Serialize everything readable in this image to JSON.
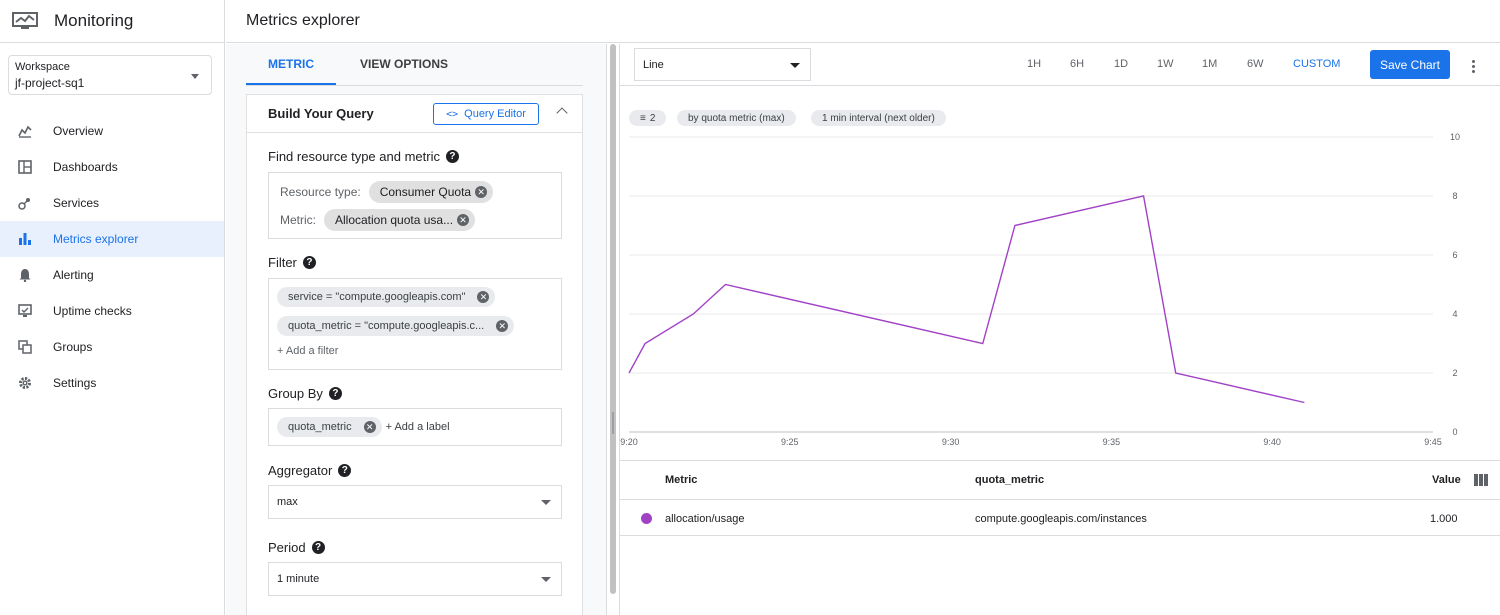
{
  "app": {
    "title": "Monitoring"
  },
  "sidebar": {
    "workspace_label": "Workspace",
    "workspace_value": "jf-project-sq1",
    "items": [
      {
        "label": "Overview",
        "icon": "overview-icon"
      },
      {
        "label": "Dashboards",
        "icon": "dashboards-icon"
      },
      {
        "label": "Services",
        "icon": "services-icon"
      },
      {
        "label": "Metrics explorer",
        "icon": "metrics-explorer-icon",
        "active": true
      },
      {
        "label": "Alerting",
        "icon": "alerting-icon"
      },
      {
        "label": "Uptime checks",
        "icon": "uptime-checks-icon"
      },
      {
        "label": "Groups",
        "icon": "groups-icon"
      },
      {
        "label": "Settings",
        "icon": "settings-icon"
      }
    ]
  },
  "header": {
    "title": "Metrics explorer"
  },
  "query": {
    "tabs": [
      "METRIC",
      "VIEW OPTIONS"
    ],
    "title": "Build Your Query",
    "query_editor": "Query Editor",
    "find_label": "Find resource type and metric",
    "resource_type_label": "Resource type:",
    "resource_type_value": "Consumer Quota",
    "metric_label": "Metric:",
    "metric_value": "Allocation quota usa...",
    "filter_label": "Filter",
    "filters": [
      "service = \"compute.googleapis.com\"",
      "quota_metric = \"compute.googleapis.c..."
    ],
    "add_filter": "+ Add a filter",
    "group_by_label": "Group By",
    "group_by_chip": "quota_metric",
    "add_label": "+ Add a label",
    "aggregator_label": "Aggregator",
    "aggregator_value": "max",
    "period_label": "Period",
    "period_value": "1 minute"
  },
  "toolbar": {
    "chart_type": "Line",
    "ranges": [
      "1H",
      "6H",
      "1D",
      "1W",
      "1M",
      "6W",
      "CUSTOM"
    ],
    "save_label": "Save Chart"
  },
  "pills": {
    "filters": "2",
    "by": "by quota metric (max)",
    "interval": "1 min interval (next older)"
  },
  "chart_data": {
    "type": "line",
    "x": [
      "9:20",
      "9:21",
      "9:22",
      "9:23",
      "9:24",
      "9:25",
      "9:26",
      "9:27",
      "9:28",
      "9:29",
      "9:30",
      "9:31",
      "9:32",
      "9:33",
      "9:34",
      "9:35",
      "9:36",
      "9:37",
      "9:38",
      "9:39",
      "9:40",
      "9:41"
    ],
    "series": [
      {
        "name": "allocation/usage",
        "color": "#a142c6",
        "points": [
          [
            "9:20",
            2
          ],
          [
            "9:20.5",
            3
          ],
          [
            "9:22",
            4
          ],
          [
            "9:23",
            5
          ],
          [
            "9:31",
            3
          ],
          [
            "9:32",
            7
          ],
          [
            "9:36",
            8
          ],
          [
            "9:37",
            2
          ],
          [
            "9:41",
            1
          ]
        ]
      }
    ],
    "xticks": [
      "9:20",
      "9:25",
      "9:30",
      "9:35",
      "9:40",
      "9:45"
    ],
    "xlim": [
      20,
      45
    ],
    "yticks": [
      0,
      2,
      4,
      6,
      8,
      10
    ],
    "ylim": [
      0,
      10
    ],
    "grid": true
  },
  "legend_table": {
    "headers": {
      "metric": "Metric",
      "quota_metric": "quota_metric",
      "value": "Value"
    },
    "rows": [
      {
        "metric": "allocation/usage",
        "quota_metric": "compute.googleapis.com/instances",
        "value": "1.000",
        "color": "#a142c6"
      }
    ]
  }
}
